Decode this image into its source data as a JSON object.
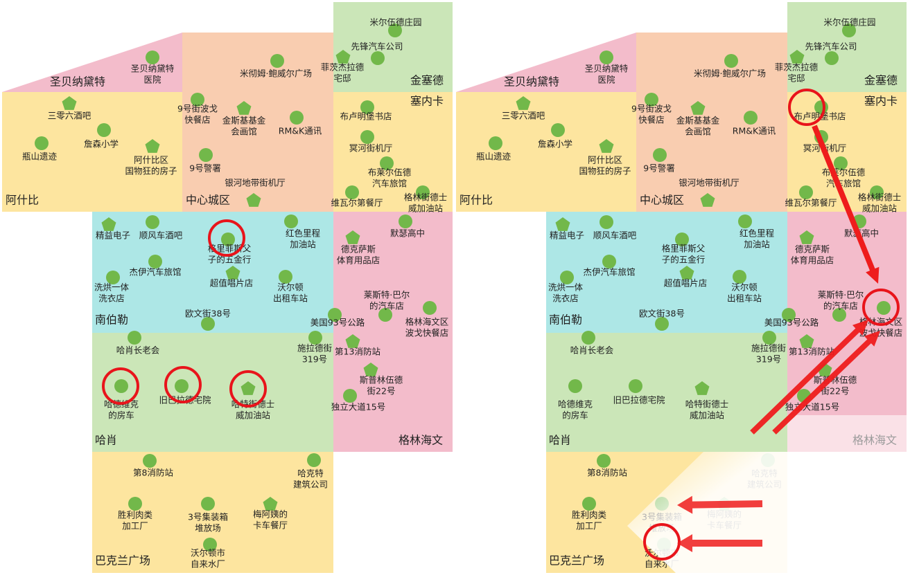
{
  "districts": [
    "圣贝纳黛特",
    "金塞德",
    "塞内卡",
    "阿什比",
    "中心城区",
    "南伯勒",
    "哈肖",
    "格林海文",
    "巴克兰广场"
  ],
  "places": [
    {
      "lines": [
        "米尔伍德庄园"
      ]
    },
    {
      "lines": [
        "先锋汽车公司"
      ]
    },
    {
      "lines": [
        "菲茨杰拉德",
        "宅邸"
      ]
    },
    {
      "lines": [
        "圣贝纳黛特",
        "医院"
      ]
    },
    {
      "lines": [
        "米彻姆·鲍威尔广场"
      ]
    },
    {
      "lines": [
        "三零六酒吧"
      ]
    },
    {
      "lines": [
        "9号街波戈",
        "快餐店"
      ]
    },
    {
      "lines": [
        "金斯基基金",
        "会画馆"
      ]
    },
    {
      "lines": [
        "RM&K通讯"
      ]
    },
    {
      "lines": [
        "布卢明堡书店"
      ]
    },
    {
      "lines": [
        "詹森小学"
      ]
    },
    {
      "lines": [
        "阿什比区",
        "国物狂的房子"
      ]
    },
    {
      "lines": [
        "瓶山遗迹"
      ]
    },
    {
      "lines": [
        "冥河街机厅"
      ]
    },
    {
      "lines": [
        "9号警署"
      ]
    },
    {
      "lines": [
        "布莱尔伍德",
        "汽车旅馆"
      ]
    },
    {
      "lines": [
        "银河地带街机厅"
      ]
    },
    {
      "lines": [
        "维瓦尔第餐厅"
      ]
    },
    {
      "lines": [
        "格林街德士",
        "威加油站"
      ]
    },
    {
      "lines": [
        "精益电子"
      ]
    },
    {
      "lines": [
        "顺风车酒吧"
      ]
    },
    {
      "lines": [
        "格里菲斯父",
        "子的五金行"
      ]
    },
    {
      "lines": [
        "红色里程",
        "加油站"
      ]
    },
    {
      "lines": [
        "德克萨斯",
        "体育用品店"
      ]
    },
    {
      "lines": [
        "默瑟高中"
      ]
    },
    {
      "lines": [
        "杰伊汽车旅馆"
      ]
    },
    {
      "lines": [
        "超值唱片店"
      ]
    },
    {
      "lines": [
        "沃尔顿",
        "出租车站"
      ]
    },
    {
      "lines": [
        "洗烘一体",
        "洗衣店"
      ]
    },
    {
      "lines": [
        "莱斯特·巴尔",
        "的汽车店"
      ]
    },
    {
      "lines": [
        "格林海文区",
        "波戈快餐店"
      ]
    },
    {
      "lines": [
        "欧文街38号"
      ]
    },
    {
      "lines": [
        "美国93号公路"
      ]
    },
    {
      "lines": [
        "哈肖长老会"
      ]
    },
    {
      "lines": [
        "施拉德街",
        "319号"
      ]
    },
    {
      "lines": [
        "第13消防站"
      ]
    },
    {
      "lines": [
        "斯普林伍德",
        "街22号"
      ]
    },
    {
      "lines": [
        "哈德维克",
        "的房车"
      ]
    },
    {
      "lines": [
        "旧巴拉德宅院"
      ]
    },
    {
      "lines": [
        "哈特街德士",
        "威加油站"
      ]
    },
    {
      "lines": [
        "独立大道15号"
      ]
    },
    {
      "lines": [
        "第8消防站"
      ]
    },
    {
      "lines": [
        "哈克特",
        "建筑公司"
      ]
    },
    {
      "lines": [
        "胜利肉类",
        "加工厂"
      ]
    },
    {
      "lines": [
        "3号集装箱",
        "堆放场"
      ]
    },
    {
      "lines": [
        "梅阿姨的",
        "卡车餐厅"
      ]
    },
    {
      "lines": [
        "沃尔顿市",
        "自来水厂"
      ]
    }
  ]
}
